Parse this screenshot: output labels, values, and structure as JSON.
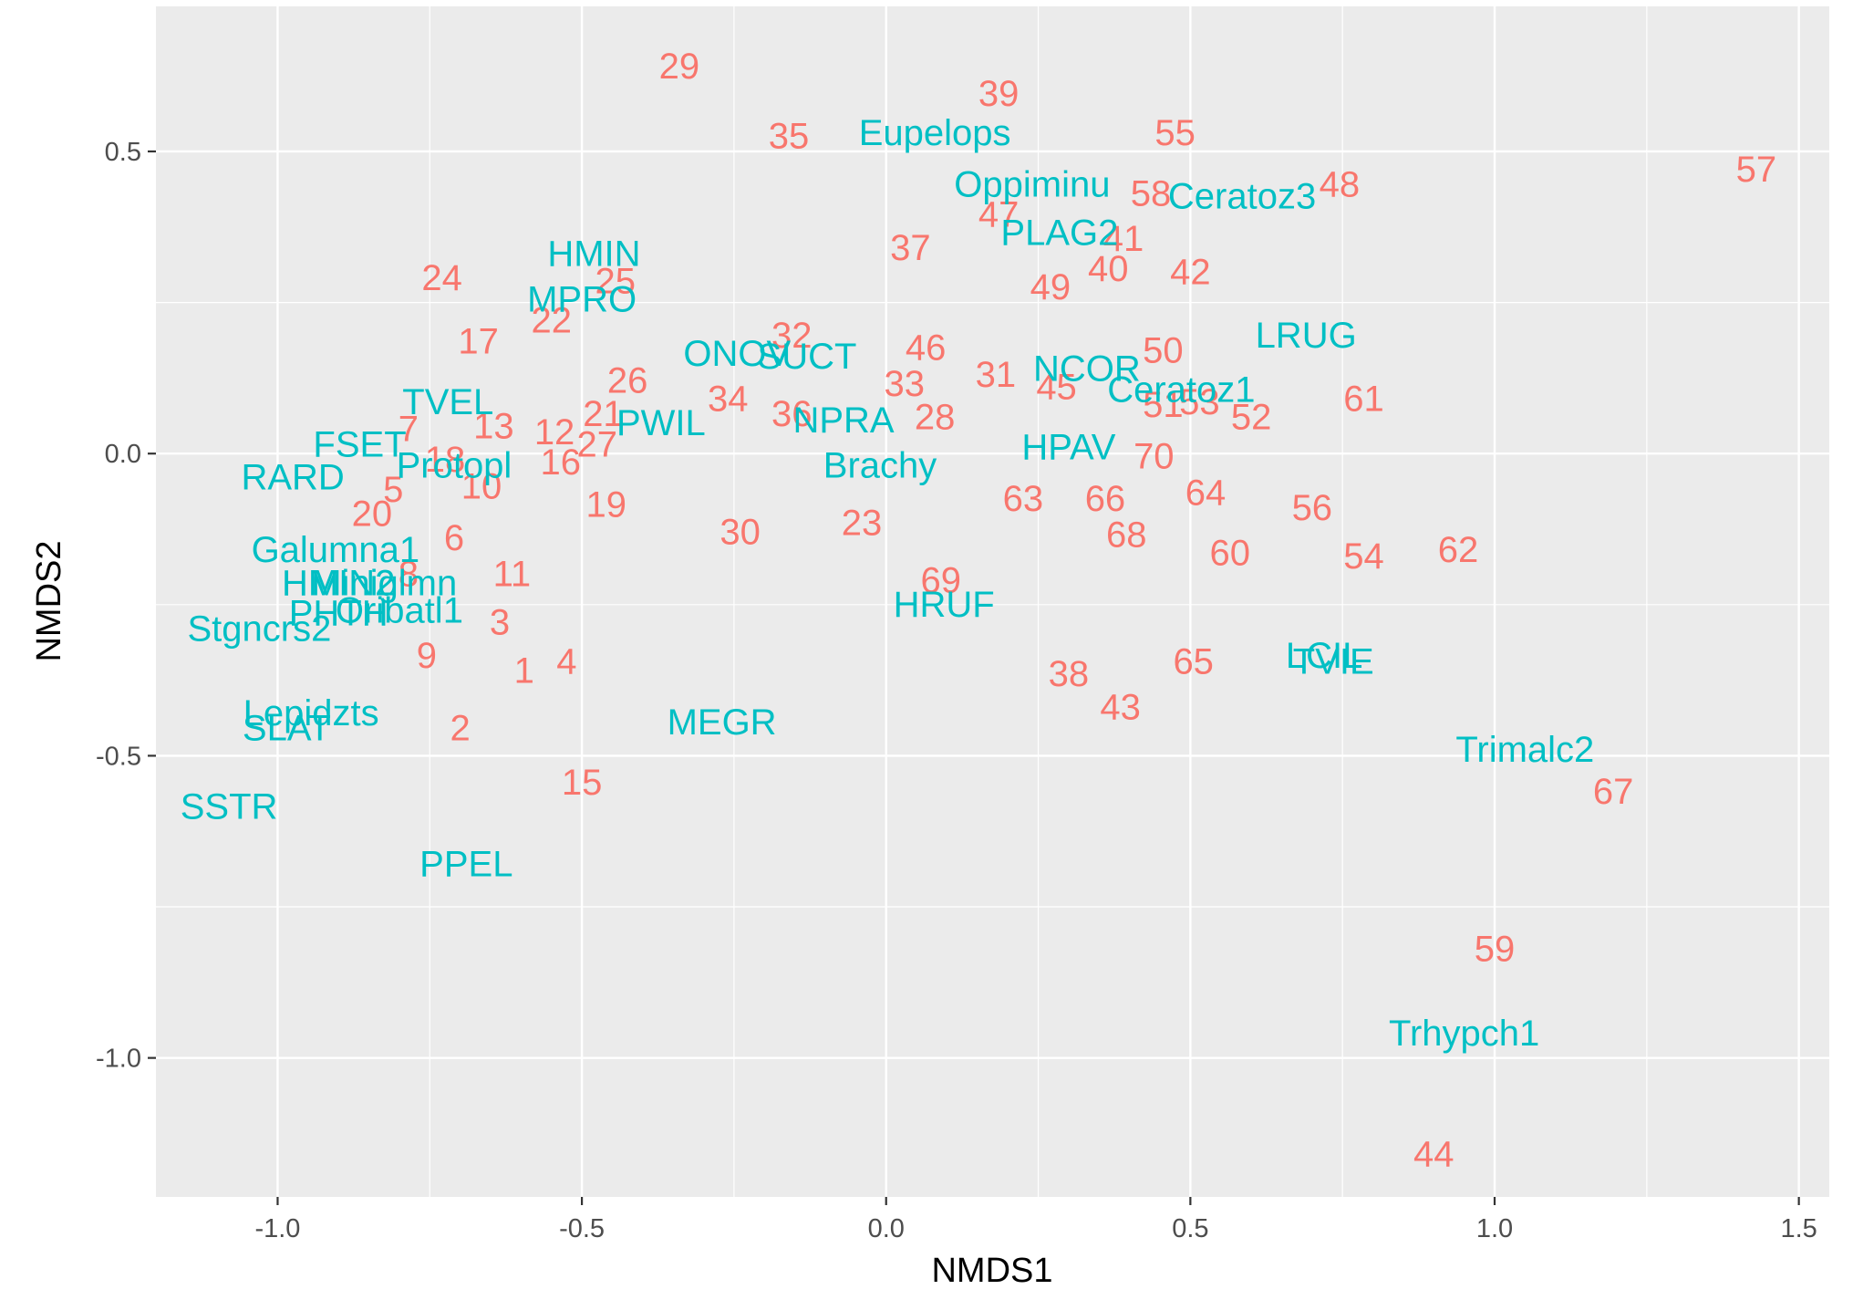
{
  "chart_data": {
    "type": "scatter",
    "title": "",
    "xlabel": "NMDS1",
    "ylabel": "NMDS2",
    "xlim": [
      -1.2,
      1.55
    ],
    "ylim": [
      -1.23,
      0.74
    ],
    "x_ticks": [
      {
        "value": -1.0,
        "label": "-1.0"
      },
      {
        "value": -0.5,
        "label": "-0.5"
      },
      {
        "value": 0.0,
        "label": "0.0"
      },
      {
        "value": 0.5,
        "label": "0.5"
      },
      {
        "value": 1.0,
        "label": "1.0"
      },
      {
        "value": 1.5,
        "label": "1.5"
      }
    ],
    "y_ticks": [
      {
        "value": -1.0,
        "label": "-1.0"
      },
      {
        "value": -0.5,
        "label": "-0.5"
      },
      {
        "value": 0.0,
        "label": "0.0"
      },
      {
        "value": 0.5,
        "label": "0.5"
      }
    ],
    "grid": true,
    "legend": "none",
    "colors": {
      "sites": "#F8766D",
      "species": "#00BFC4",
      "panel": "#EBEBEB",
      "grid": "#FFFFFF"
    },
    "series": [
      {
        "color": "#F8766D",
        "points": [
          {
            "label": "1",
            "x": -0.595,
            "y": -0.36
          },
          {
            "label": "2",
            "x": -0.7,
            "y": -0.455
          },
          {
            "label": "3",
            "x": -0.635,
            "y": -0.28
          },
          {
            "label": "4",
            "x": -0.525,
            "y": -0.345
          },
          {
            "label": "5",
            "x": -0.81,
            "y": -0.06
          },
          {
            "label": "6",
            "x": -0.71,
            "y": -0.14
          },
          {
            "label": "7",
            "x": -0.785,
            "y": 0.04
          },
          {
            "label": "8",
            "x": -0.785,
            "y": -0.2
          },
          {
            "label": "9",
            "x": -0.755,
            "y": -0.335
          },
          {
            "label": "10",
            "x": -0.665,
            "y": -0.055
          },
          {
            "label": "11",
            "x": -0.615,
            "y": -0.2
          },
          {
            "label": "12",
            "x": -0.545,
            "y": 0.035
          },
          {
            "label": "13",
            "x": -0.645,
            "y": 0.045
          },
          {
            "label": "15",
            "x": -0.5,
            "y": -0.545
          },
          {
            "label": "16",
            "x": -0.535,
            "y": -0.015
          },
          {
            "label": "17",
            "x": -0.67,
            "y": 0.185
          },
          {
            "label": "18",
            "x": -0.725,
            "y": -0.01
          },
          {
            "label": "19",
            "x": -0.46,
            "y": -0.085
          },
          {
            "label": "20",
            "x": -0.845,
            "y": -0.1
          },
          {
            "label": "21",
            "x": -0.465,
            "y": 0.065
          },
          {
            "label": "22",
            "x": -0.55,
            "y": 0.22
          },
          {
            "label": "23",
            "x": -0.04,
            "y": -0.115
          },
          {
            "label": "24",
            "x": -0.73,
            "y": 0.29
          },
          {
            "label": "25",
            "x": -0.445,
            "y": 0.285
          },
          {
            "label": "26",
            "x": -0.425,
            "y": 0.12
          },
          {
            "label": "27",
            "x": -0.475,
            "y": 0.015
          },
          {
            "label": "28",
            "x": 0.08,
            "y": 0.06
          },
          {
            "label": "29",
            "x": -0.34,
            "y": 0.64
          },
          {
            "label": "30",
            "x": -0.24,
            "y": -0.13
          },
          {
            "label": "31",
            "x": 0.18,
            "y": 0.13
          },
          {
            "label": "32",
            "x": -0.155,
            "y": 0.195
          },
          {
            "label": "33",
            "x": 0.03,
            "y": 0.115
          },
          {
            "label": "34",
            "x": -0.26,
            "y": 0.09
          },
          {
            "label": "35",
            "x": -0.16,
            "y": 0.525
          },
          {
            "label": "36",
            "x": -0.155,
            "y": 0.065
          },
          {
            "label": "37",
            "x": 0.04,
            "y": 0.34
          },
          {
            "label": "38",
            "x": 0.3,
            "y": -0.365
          },
          {
            "label": "39",
            "x": 0.185,
            "y": 0.595
          },
          {
            "label": "40",
            "x": 0.365,
            "y": 0.305
          },
          {
            "label": "41",
            "x": 0.39,
            "y": 0.355
          },
          {
            "label": "42",
            "x": 0.5,
            "y": 0.3
          },
          {
            "label": "43",
            "x": 0.385,
            "y": -0.42
          },
          {
            "label": "44",
            "x": 0.9,
            "y": -1.16
          },
          {
            "label": "45",
            "x": 0.28,
            "y": 0.11
          },
          {
            "label": "46",
            "x": 0.065,
            "y": 0.175
          },
          {
            "label": "47",
            "x": 0.185,
            "y": 0.395
          },
          {
            "label": "48",
            "x": 0.745,
            "y": 0.445
          },
          {
            "label": "49",
            "x": 0.27,
            "y": 0.275
          },
          {
            "label": "50",
            "x": 0.455,
            "y": 0.17
          },
          {
            "label": "51",
            "x": 0.455,
            "y": 0.08
          },
          {
            "label": "52",
            "x": 0.6,
            "y": 0.06
          },
          {
            "label": "53",
            "x": 0.515,
            "y": 0.085
          },
          {
            "label": "54",
            "x": 0.785,
            "y": -0.17
          },
          {
            "label": "55",
            "x": 0.475,
            "y": 0.53
          },
          {
            "label": "56",
            "x": 0.7,
            "y": -0.09
          },
          {
            "label": "57",
            "x": 1.43,
            "y": 0.47
          },
          {
            "label": "58",
            "x": 0.435,
            "y": 0.43
          },
          {
            "label": "59",
            "x": 1.0,
            "y": -0.82
          },
          {
            "label": "60",
            "x": 0.565,
            "y": -0.165
          },
          {
            "label": "61",
            "x": 0.785,
            "y": 0.09
          },
          {
            "label": "62",
            "x": 0.94,
            "y": -0.16
          },
          {
            "label": "63",
            "x": 0.225,
            "y": -0.075
          },
          {
            "label": "64",
            "x": 0.525,
            "y": -0.065
          },
          {
            "label": "65",
            "x": 0.505,
            "y": -0.345
          },
          {
            "label": "66",
            "x": 0.36,
            "y": -0.075
          },
          {
            "label": "67",
            "x": 1.195,
            "y": -0.56
          },
          {
            "label": "68",
            "x": 0.395,
            "y": -0.135
          },
          {
            "label": "69",
            "x": 0.09,
            "y": -0.21
          },
          {
            "label": "70",
            "x": 0.44,
            "y": -0.005
          }
        ]
      },
      {
        "color": "#00BFC4",
        "points": [
          {
            "label": "Eupelops",
            "x": 0.08,
            "y": 0.53
          },
          {
            "label": "Oppiminu",
            "x": 0.24,
            "y": 0.445
          },
          {
            "label": "Ceratoz3",
            "x": 0.585,
            "y": 0.425
          },
          {
            "label": "PLAG2",
            "x": 0.285,
            "y": 0.365
          },
          {
            "label": "HMIN",
            "x": -0.48,
            "y": 0.33
          },
          {
            "label": "MPRO",
            "x": -0.5,
            "y": 0.255
          },
          {
            "label": "LRUG",
            "x": 0.69,
            "y": 0.195
          },
          {
            "label": "ONOV",
            "x": -0.245,
            "y": 0.165
          },
          {
            "label": "SUCT",
            "x": -0.13,
            "y": 0.16
          },
          {
            "label": "NCOR",
            "x": 0.33,
            "y": 0.14
          },
          {
            "label": "Ceratoz1",
            "x": 0.485,
            "y": 0.105
          },
          {
            "label": "TVEL",
            "x": -0.72,
            "y": 0.085
          },
          {
            "label": "PWIL",
            "x": -0.37,
            "y": 0.05
          },
          {
            "label": "NPRA",
            "x": -0.07,
            "y": 0.055
          },
          {
            "label": "FSET",
            "x": -0.865,
            "y": 0.015
          },
          {
            "label": "HPAV",
            "x": 0.3,
            "y": 0.01
          },
          {
            "label": "Protopl",
            "x": -0.71,
            "y": -0.02
          },
          {
            "label": "Brachy",
            "x": -0.01,
            "y": -0.02
          },
          {
            "label": "RARD",
            "x": -0.975,
            "y": -0.04
          },
          {
            "label": "Galumna1",
            "x": -0.905,
            "y": -0.16
          },
          {
            "label": "HMIN2",
            "x": -0.9,
            "y": -0.215
          },
          {
            "label": "Miniglmn",
            "x": -0.825,
            "y": -0.215
          },
          {
            "label": "HRUF",
            "x": 0.095,
            "y": -0.25
          },
          {
            "label": "PHTH",
            "x": -0.9,
            "y": -0.265
          },
          {
            "label": "Oribatl1",
            "x": -0.8,
            "y": -0.26
          },
          {
            "label": "Stgncrs2",
            "x": -1.03,
            "y": -0.29
          },
          {
            "label": "LCIL",
            "x": 0.72,
            "y": -0.335
          },
          {
            "label": "TVIE",
            "x": 0.735,
            "y": -0.345
          },
          {
            "label": "Lepidzts",
            "x": -0.945,
            "y": -0.43
          },
          {
            "label": "SLAT",
            "x": -0.985,
            "y": -0.455
          },
          {
            "label": "MEGR",
            "x": -0.27,
            "y": -0.445
          },
          {
            "label": "Trimalc2",
            "x": 1.05,
            "y": -0.49
          },
          {
            "label": "SSTR",
            "x": -1.08,
            "y": -0.585
          },
          {
            "label": "PPEL",
            "x": -0.69,
            "y": -0.68
          },
          {
            "label": "Trhypch1",
            "x": 0.95,
            "y": -0.96
          }
        ]
      }
    ]
  }
}
